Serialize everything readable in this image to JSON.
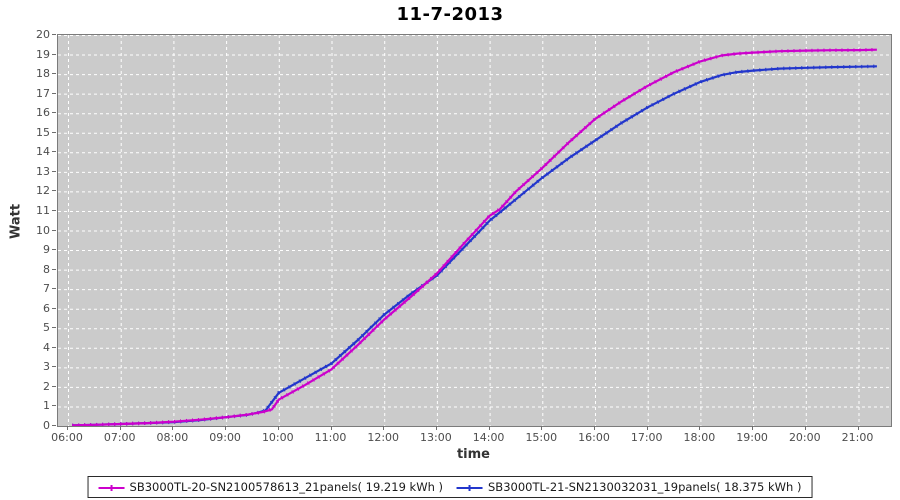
{
  "title": "11-7-2013",
  "axes": {
    "x_label": "time",
    "y_label": "Watt",
    "x_ticks": [
      "06:00",
      "07:00",
      "08:00",
      "09:00",
      "10:00",
      "11:00",
      "12:00",
      "13:00",
      "14:00",
      "15:00",
      "16:00",
      "17:00",
      "18:00",
      "19:00",
      "20:00",
      "21:00"
    ],
    "y_ticks": [
      "0",
      "1",
      "2",
      "3",
      "4",
      "5",
      "6",
      "7",
      "8",
      "9",
      "10",
      "11",
      "12",
      "13",
      "14",
      "15",
      "16",
      "17",
      "18",
      "19",
      "20"
    ]
  },
  "legend": [
    {
      "label": "SB3000TL-20-SN2100578613_21panels( 19.219 kWh )",
      "color": "#cc00cc"
    },
    {
      "label": "SB3000TL-21-SN2130032031_19panels( 18.375 kWh )",
      "color": "#2236cc"
    }
  ],
  "colors": {
    "plot_background": "#cbcbcb",
    "grid": "#ffffff",
    "plot_border": "#7b7b7b",
    "tick_text": "#4d4d4d",
    "series1": "#cc00cc",
    "series2": "#2236cc"
  },
  "chart_data": {
    "type": "line",
    "title": "11-7-2013",
    "xlabel": "time",
    "ylabel": "Watt",
    "x_unit": "hour_of_day",
    "xlim": [
      5.81,
      21.6
    ],
    "ylim": [
      0,
      20
    ],
    "x_tick_hours": [
      6,
      7,
      8,
      9,
      10,
      11,
      12,
      13,
      14,
      15,
      16,
      17,
      18,
      19,
      20,
      21
    ],
    "grid": true,
    "legend_position": "bottom",
    "series": [
      {
        "name": "SB3000TL-20-SN2100578613_21panels( 19.219 kWh )",
        "color": "#cc00cc",
        "total_kwh": 19.219,
        "points": [
          [
            6.08,
            0.03
          ],
          [
            6.5,
            0.06
          ],
          [
            7,
            0.1
          ],
          [
            7.5,
            0.15
          ],
          [
            8,
            0.22
          ],
          [
            8.5,
            0.32
          ],
          [
            9,
            0.45
          ],
          [
            9.4,
            0.58
          ],
          [
            9.7,
            0.72
          ],
          [
            9.87,
            0.85
          ],
          [
            10,
            1.35
          ],
          [
            10.5,
            2.1
          ],
          [
            11,
            2.9
          ],
          [
            11.5,
            4.15
          ],
          [
            12,
            5.45
          ],
          [
            12.5,
            6.6
          ],
          [
            13,
            7.8
          ],
          [
            13.5,
            9.3
          ],
          [
            14,
            10.75
          ],
          [
            14.2,
            11.1
          ],
          [
            14.5,
            12.0
          ],
          [
            15,
            13.2
          ],
          [
            15.5,
            14.5
          ],
          [
            16,
            15.7
          ],
          [
            16.5,
            16.6
          ],
          [
            17,
            17.4
          ],
          [
            17.5,
            18.1
          ],
          [
            18,
            18.65
          ],
          [
            18.4,
            18.95
          ],
          [
            18.7,
            19.05
          ],
          [
            19,
            19.1
          ],
          [
            19.5,
            19.17
          ],
          [
            20,
            19.2
          ],
          [
            20.5,
            19.22
          ],
          [
            21,
            19.23
          ],
          [
            21.35,
            19.25
          ]
        ]
      },
      {
        "name": "SB3000TL-21-SN2130032031_19panels( 18.375 kWh )",
        "color": "#2236cc",
        "total_kwh": 18.375,
        "points": [
          [
            6.08,
            0.03
          ],
          [
            6.5,
            0.06
          ],
          [
            7,
            0.1
          ],
          [
            7.5,
            0.15
          ],
          [
            8,
            0.2
          ],
          [
            8.5,
            0.3
          ],
          [
            9,
            0.45
          ],
          [
            9.4,
            0.57
          ],
          [
            9.6,
            0.68
          ],
          [
            9.75,
            0.8
          ],
          [
            10,
            1.7
          ],
          [
            10.5,
            2.45
          ],
          [
            11,
            3.2
          ],
          [
            11.5,
            4.4
          ],
          [
            12,
            5.7
          ],
          [
            12.5,
            6.75
          ],
          [
            13,
            7.7
          ],
          [
            13.5,
            9.1
          ],
          [
            14,
            10.5
          ],
          [
            14.25,
            11.05
          ],
          [
            14.5,
            11.6
          ],
          [
            15,
            12.7
          ],
          [
            15.5,
            13.7
          ],
          [
            16,
            14.6
          ],
          [
            16.5,
            15.5
          ],
          [
            17,
            16.3
          ],
          [
            17.5,
            17.0
          ],
          [
            18,
            17.6
          ],
          [
            18.4,
            17.95
          ],
          [
            18.7,
            18.1
          ],
          [
            19,
            18.18
          ],
          [
            19.5,
            18.28
          ],
          [
            20,
            18.32
          ],
          [
            20.5,
            18.36
          ],
          [
            21,
            18.38
          ],
          [
            21.35,
            18.4
          ]
        ]
      }
    ]
  }
}
